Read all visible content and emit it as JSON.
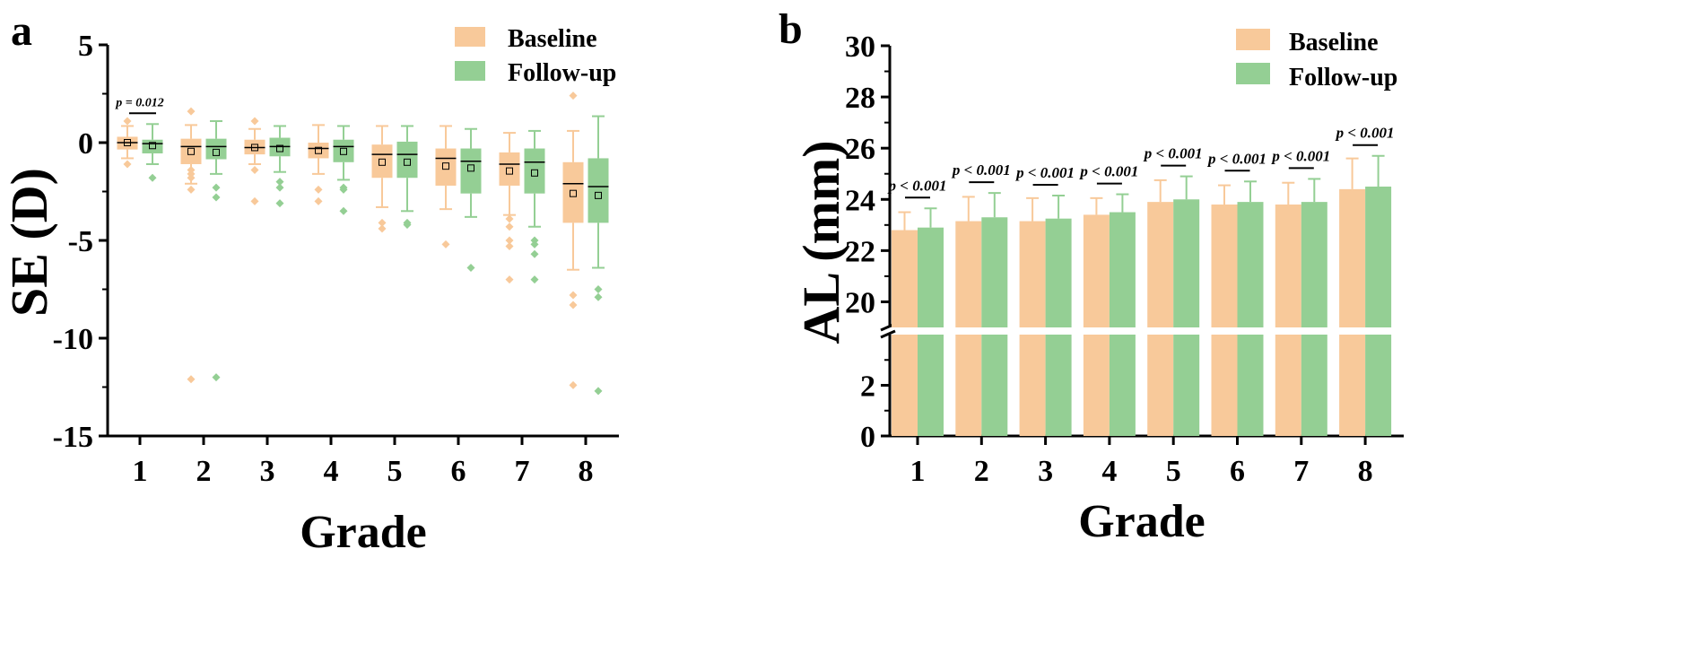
{
  "colors": {
    "baseline": "#f8c99a",
    "followup": "#94cf94",
    "axis": "#000000",
    "text": "#000000"
  },
  "chart_data": [
    {
      "panel_label": "a",
      "type": "box",
      "xlabel": "Grade",
      "ylabel": "SE (D)",
      "ylim": [
        -15,
        5
      ],
      "yticks": [
        5,
        0,
        -5,
        -10,
        -15
      ],
      "categories": [
        "1",
        "2",
        "3",
        "4",
        "5",
        "6",
        "7",
        "8"
      ],
      "legend": [
        "Baseline",
        "Follow-up"
      ],
      "legend_position": "top-right",
      "series": [
        {
          "name": "Baseline",
          "boxes": [
            {
              "q1": -0.35,
              "median": 0.0,
              "q3": 0.3,
              "mean": 0.0,
              "whisker_low": -0.8,
              "whisker_high": 0.85,
              "outliers": [
                1.1,
                -1.1
              ]
            },
            {
              "q1": -1.1,
              "median": -0.2,
              "q3": 0.2,
              "mean": -0.45,
              "whisker_low": -2.1,
              "whisker_high": 0.9,
              "outliers": [
                1.6,
                -1.4,
                -1.6,
                -1.8,
                -2.4,
                -12.1
              ]
            },
            {
              "q1": -0.6,
              "median": -0.25,
              "q3": 0.15,
              "mean": -0.25,
              "whisker_low": -1.1,
              "whisker_high": 0.7,
              "outliers": [
                1.1,
                -1.4,
                -3.0
              ]
            },
            {
              "q1": -0.8,
              "median": -0.3,
              "q3": 0.0,
              "mean": -0.4,
              "whisker_low": -1.6,
              "whisker_high": 0.9,
              "outliers": [
                -2.4,
                -3.0
              ]
            },
            {
              "q1": -1.8,
              "median": -0.6,
              "q3": -0.1,
              "mean": -1.0,
              "whisker_low": -3.3,
              "whisker_high": 0.85,
              "outliers": [
                -4.1,
                -4.4
              ]
            },
            {
              "q1": -2.2,
              "median": -0.8,
              "q3": -0.3,
              "mean": -1.2,
              "whisker_low": -3.4,
              "whisker_high": 0.85,
              "outliers": [
                -5.2
              ]
            },
            {
              "q1": -2.2,
              "median": -1.1,
              "q3": -0.5,
              "mean": -1.45,
              "whisker_low": -3.7,
              "whisker_high": 0.5,
              "outliers": [
                -3.9,
                -4.3,
                -5.0,
                -5.3,
                -7.0
              ]
            },
            {
              "q1": -4.1,
              "median": -2.1,
              "q3": -1.0,
              "mean": -2.6,
              "whisker_low": -6.5,
              "whisker_high": 0.6,
              "outliers": [
                2.4,
                -7.8,
                -8.3,
                -12.4
              ]
            }
          ]
        },
        {
          "name": "Follow-up",
          "boxes": [
            {
              "q1": -0.55,
              "median": -0.05,
              "q3": 0.15,
              "mean": -0.15,
              "whisker_low": -1.1,
              "whisker_high": 0.95,
              "outliers": [
                -1.8
              ]
            },
            {
              "q1": -0.85,
              "median": -0.2,
              "q3": 0.2,
              "mean": -0.5,
              "whisker_low": -1.6,
              "whisker_high": 1.1,
              "outliers": [
                -2.3,
                -2.8,
                -12.0
              ]
            },
            {
              "q1": -0.7,
              "median": -0.2,
              "q3": 0.25,
              "mean": -0.3,
              "whisker_low": -1.5,
              "whisker_high": 0.85,
              "outliers": [
                -2.0,
                -2.3,
                -3.1
              ]
            },
            {
              "q1": -1.0,
              "median": -0.2,
              "q3": 0.15,
              "mean": -0.45,
              "whisker_low": -1.9,
              "whisker_high": 0.85,
              "outliers": [
                -2.3,
                -2.4,
                -3.5
              ]
            },
            {
              "q1": -1.8,
              "median": -0.6,
              "q3": 0.05,
              "mean": -1.0,
              "whisker_low": -3.5,
              "whisker_high": 0.85,
              "outliers": [
                -4.1,
                -4.2
              ]
            },
            {
              "q1": -2.6,
              "median": -0.95,
              "q3": -0.3,
              "mean": -1.3,
              "whisker_low": -3.8,
              "whisker_high": 0.7,
              "outliers": [
                -6.4
              ]
            },
            {
              "q1": -2.6,
              "median": -1.0,
              "q3": -0.3,
              "mean": -1.55,
              "whisker_low": -4.3,
              "whisker_high": 0.6,
              "outliers": [
                -5.0,
                -5.2,
                -5.7,
                -7.0
              ]
            },
            {
              "q1": -4.1,
              "median": -2.25,
              "q3": -0.8,
              "mean": -2.7,
              "whisker_low": -6.4,
              "whisker_high": 1.35,
              "outliers": [
                -7.5,
                -7.9,
                -12.7
              ]
            }
          ]
        }
      ],
      "annotations": [
        {
          "grade": "1",
          "text": "p = 0.012",
          "y": 1.5
        }
      ]
    },
    {
      "panel_label": "b",
      "type": "bar",
      "xlabel": "Grade",
      "ylabel": "AL (mm)",
      "y_axis_break": [
        4,
        19
      ],
      "ylim": [
        0,
        30
      ],
      "yticks": [
        0,
        2,
        20,
        22,
        24,
        26,
        28,
        30
      ],
      "categories": [
        "1",
        "2",
        "3",
        "4",
        "5",
        "6",
        "7",
        "8"
      ],
      "legend": [
        "Baseline",
        "Follow-up"
      ],
      "legend_position": "top-right",
      "series": [
        {
          "name": "Baseline",
          "values": [
            22.8,
            23.15,
            23.15,
            23.4,
            23.9,
            23.8,
            23.8,
            24.4
          ],
          "errors": [
            0.7,
            0.95,
            0.9,
            0.65,
            0.85,
            0.75,
            0.85,
            1.2
          ]
        },
        {
          "name": "Follow-up",
          "values": [
            22.9,
            23.3,
            23.25,
            23.5,
            24.0,
            23.9,
            23.9,
            24.5
          ],
          "errors": [
            0.75,
            0.95,
            0.9,
            0.7,
            0.9,
            0.8,
            0.9,
            1.2
          ]
        }
      ],
      "annotations": [
        {
          "grade": "1",
          "text": "p < 0.001"
        },
        {
          "grade": "2",
          "text": "p < 0.001"
        },
        {
          "grade": "3",
          "text": "p < 0.001"
        },
        {
          "grade": "4",
          "text": "p < 0.001"
        },
        {
          "grade": "5",
          "text": "p < 0.001"
        },
        {
          "grade": "6",
          "text": "p < 0.001"
        },
        {
          "grade": "7",
          "text": "p < 0.001"
        },
        {
          "grade": "8",
          "text": "p < 0.001"
        }
      ]
    }
  ]
}
